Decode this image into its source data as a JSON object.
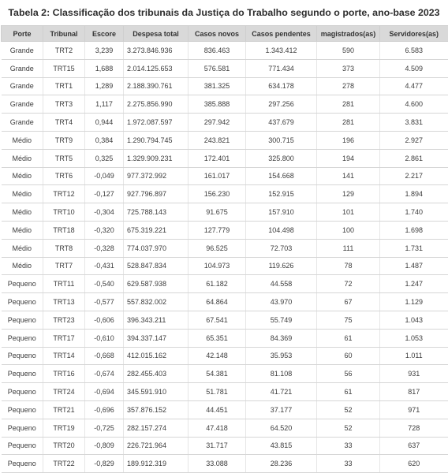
{
  "title": "Tabela 2: Classificação dos tribunais da Justiça do Trabalho segundo o porte, ano-base 2023",
  "table": {
    "headers": [
      "Porte",
      "Tribunal",
      "Escore",
      "Despesa total",
      "Casos novos",
      "Casos pendentes",
      "magistrados(as)",
      "Servidores(as)"
    ],
    "rows": [
      [
        "Grande",
        "TRT2",
        "3,239",
        "3.273.846.936",
        "836.463",
        "1.343.412",
        "590",
        "6.583"
      ],
      [
        "Grande",
        "TRT15",
        "1,688",
        "2.014.125.653",
        "576.581",
        "771.434",
        "373",
        "4.509"
      ],
      [
        "Grande",
        "TRT1",
        "1,289",
        "2.188.390.761",
        "381.325",
        "634.178",
        "278",
        "4.477"
      ],
      [
        "Grande",
        "TRT3",
        "1,117",
        "2.275.856.990",
        "385.888",
        "297.256",
        "281",
        "4.600"
      ],
      [
        "Grande",
        "TRT4",
        "0,944",
        "1.972.087.597",
        "297.942",
        "437.679",
        "281",
        "3.831"
      ],
      [
        "Médio",
        "TRT9",
        "0,384",
        "1.290.794.745",
        "243.821",
        "300.715",
        "196",
        "2.927"
      ],
      [
        "Médio",
        "TRT5",
        "0,325",
        "1.329.909.231",
        "172.401",
        "325.800",
        "194",
        "2.861"
      ],
      [
        "Médio",
        "TRT6",
        "-0,049",
        "977.372.992",
        "161.017",
        "154.668",
        "141",
        "2.217"
      ],
      [
        "Médio",
        "TRT12",
        "-0,127",
        "927.796.897",
        "156.230",
        "152.915",
        "129",
        "1.894"
      ],
      [
        "Médio",
        "TRT10",
        "-0,304",
        "725.788.143",
        "91.675",
        "157.910",
        "101",
        "1.740"
      ],
      [
        "Médio",
        "TRT18",
        "-0,320",
        "675.319.221",
        "127.779",
        "104.498",
        "100",
        "1.698"
      ],
      [
        "Médio",
        "TRT8",
        "-0,328",
        "774.037.970",
        "96.525",
        "72.703",
        "111",
        "1.731"
      ],
      [
        "Médio",
        "TRT7",
        "-0,431",
        "528.847.834",
        "104.973",
        "119.626",
        "78",
        "1.487"
      ],
      [
        "Pequeno",
        "TRT11",
        "-0,540",
        "629.587.938",
        "61.182",
        "44.558",
        "72",
        "1.247"
      ],
      [
        "Pequeno",
        "TRT13",
        "-0,577",
        "557.832.002",
        "64.864",
        "43.970",
        "67",
        "1.129"
      ],
      [
        "Pequeno",
        "TRT23",
        "-0,606",
        "396.343.211",
        "67.541",
        "55.749",
        "75",
        "1.043"
      ],
      [
        "Pequeno",
        "TRT17",
        "-0,610",
        "394.337.147",
        "65.351",
        "84.369",
        "61",
        "1.053"
      ],
      [
        "Pequeno",
        "TRT14",
        "-0,668",
        "412.015.162",
        "42.148",
        "35.953",
        "60",
        "1.011"
      ],
      [
        "Pequeno",
        "TRT16",
        "-0,674",
        "282.455.403",
        "54.381",
        "81.108",
        "56",
        "931"
      ],
      [
        "Pequeno",
        "TRT24",
        "-0,694",
        "345.591.910",
        "51.781",
        "41.721",
        "61",
        "817"
      ],
      [
        "Pequeno",
        "TRT21",
        "-0,696",
        "357.876.152",
        "44.451",
        "37.177",
        "52",
        "971"
      ],
      [
        "Pequeno",
        "TRT19",
        "-0,725",
        "282.157.274",
        "47.418",
        "64.520",
        "52",
        "728"
      ],
      [
        "Pequeno",
        "TRT20",
        "-0,809",
        "226.721.964",
        "31.717",
        "43.815",
        "33",
        "637"
      ],
      [
        "Pequeno",
        "TRT22",
        "-0,829",
        "189.912.319",
        "33.088",
        "28.236",
        "33",
        "620"
      ]
    ]
  }
}
